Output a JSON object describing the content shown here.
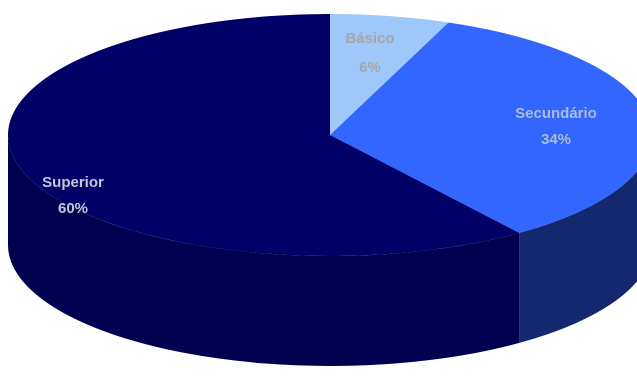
{
  "chart_data": {
    "type": "pie",
    "title": "",
    "style": "3d",
    "slices": [
      {
        "label": "Básico",
        "value": 6,
        "value_label": "6%",
        "color": "#9fc8fa",
        "side_color": "#7fa6d8",
        "label_color": "#a7a7a7"
      },
      {
        "label": "Secundário",
        "value": 34,
        "value_label": "34%",
        "color": "#3366ff",
        "side_color": "#13286e",
        "label_color": "#a9bdd6"
      },
      {
        "label": "Superior",
        "value": 60,
        "value_label": "60%",
        "color": "#000066",
        "side_color": "#000050",
        "label_color": "#c3c7d8"
      }
    ]
  }
}
